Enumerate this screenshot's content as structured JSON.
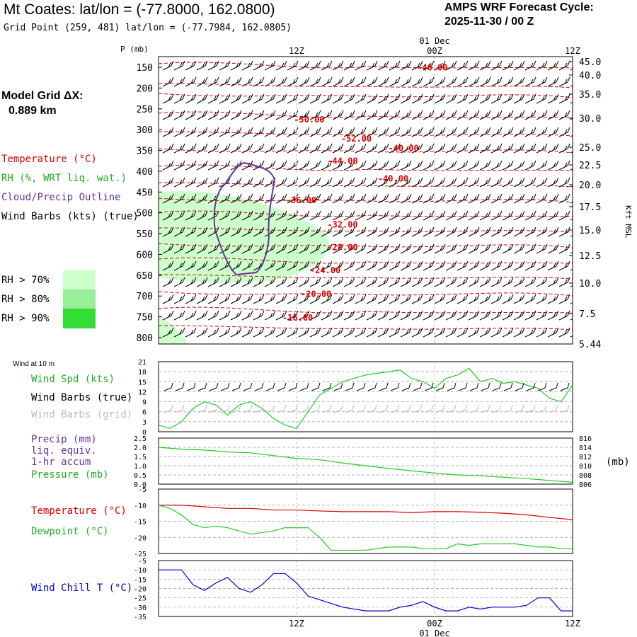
{
  "header": {
    "title": "Mt Coates:  lat/lon = (-77.8000, 162.0800)",
    "grid_point": "Grid Point (259, 481) lat/lon = (-77.7984, 162.0805)",
    "forecast_label": "AMPS WRF Forecast Cycle:",
    "forecast_cycle": "2025-11-30 / 00  Z",
    "model_grid_label": "Model Grid ΔX:",
    "model_grid_value": "0.889 km"
  },
  "legend": {
    "temperature": "Temperature (°C)",
    "rh": "RH (%, WRT liq. wat.)",
    "cloud": "Cloud/Precip Outline",
    "wind_barbs": "Wind Barbs (kts) (true)",
    "rh70": "RH > 70%",
    "rh80": "RH > 80%",
    "rh90": "RH > 90%",
    "colors": {
      "rh70": "#ccffcc",
      "rh80": "#99ee99",
      "rh90": "#33dd33",
      "temperature": "#dd0000",
      "cloud": "#663399",
      "dewpoint": "#22cc22",
      "windchill": "#0000cc"
    }
  },
  "wind10m": {
    "title": "Wind at 10 m",
    "speed_label": "Wind Spd (kts)",
    "barbs_true_label": "Wind Barbs (true)",
    "barbs_grid_label": "Wind Barbs (grid)"
  },
  "precip": {
    "label1": "Precip (mm)",
    "label2": "liq. equiv.",
    "label3": "1-hr accum",
    "pressure_label": "Pressure (mb)",
    "units": "(mb)"
  },
  "temp_panel": {
    "temperature_label": "Temperature (°C)",
    "dewpoint_label": "Dewpoint (°C)"
  },
  "windchill_panel": {
    "label": "Wind Chill T (°C)"
  },
  "chart_data": [
    {
      "type": "heatmap",
      "panel": "cross-section",
      "x_ticks": [
        "12Z",
        "00Z",
        "12Z"
      ],
      "x_tick_hours": [
        12,
        24,
        36
      ],
      "day_label": "01 Dec",
      "xlim_hours": [
        0,
        36
      ],
      "ylabel": "P (mb)",
      "p_ticks": [
        "150",
        "200",
        "250",
        "300",
        "350",
        "400",
        "450",
        "500",
        "550",
        "600",
        "650",
        "700",
        "750",
        "800"
      ],
      "right_axis_label": "Kft MSL",
      "kft_ticks": [
        "45.0",
        "40.0",
        "35.0",
        "30.0",
        "25.0",
        "22.5",
        "20.0",
        "17.5",
        "15.0",
        "12.5",
        "10.0",
        "7.5",
        "5.44"
      ],
      "isotherms": [
        {
          "label": "-46.00",
          "x": 23.8,
          "p": 158
        },
        {
          "label": "-50.00",
          "x": 13.1,
          "p": 283
        },
        {
          "label": "-52.00",
          "x": 17.2,
          "p": 329
        },
        {
          "label": "-40.00",
          "x": 21.3,
          "p": 352
        },
        {
          "label": "-44.00",
          "x": 16.0,
          "p": 382
        },
        {
          "label": "-40.00",
          "x": 20.4,
          "p": 425
        },
        {
          "label": "-36.00",
          "x": 12.4,
          "p": 477
        },
        {
          "label": "-32.00",
          "x": 16.0,
          "p": 535
        },
        {
          "label": "-28.00",
          "x": 16.0,
          "p": 590
        },
        {
          "label": "-24.00",
          "x": 14.5,
          "p": 645
        },
        {
          "label": "-20.00",
          "x": 13.7,
          "p": 702
        },
        {
          "label": "-16.00",
          "x": 12.1,
          "p": 759
        }
      ],
      "grid": true
    },
    {
      "type": "line",
      "panel": "wind10m",
      "ylim": [
        0,
        21
      ],
      "y_ticks": [
        "0",
        "3",
        "6",
        "9",
        "12",
        "15",
        "18",
        "21"
      ],
      "series": [
        {
          "name": "Wind Spd (kts)",
          "color": "#22cc22",
          "x": [
            0,
            1,
            2,
            3,
            4,
            5,
            6,
            7,
            8,
            9,
            10,
            11,
            12,
            13,
            14,
            15,
            16,
            17,
            18,
            19,
            20,
            21,
            22,
            23,
            24,
            25,
            26,
            27,
            28,
            29,
            30,
            31,
            32,
            33,
            34,
            35,
            36
          ],
          "values": [
            2,
            1,
            3,
            7,
            9,
            8,
            5,
            8,
            9,
            7,
            4,
            2,
            1,
            6,
            11,
            13,
            15,
            16,
            17,
            17.5,
            18,
            18.5,
            16,
            15,
            13,
            16,
            17,
            19,
            15,
            16,
            14.5,
            15,
            14,
            13,
            10,
            9,
            14
          ]
        }
      ]
    },
    {
      "type": "line",
      "panel": "precip-pressure",
      "ylim": [
        0,
        2.5
      ],
      "y_ticks": [
        "0.0",
        "0.5",
        "1.0",
        "1.5",
        "2.0",
        "2.5"
      ],
      "right_ylim": [
        806,
        816
      ],
      "right_y_ticks": [
        "806",
        "808",
        "810",
        "812",
        "814",
        "816"
      ],
      "series": [
        {
          "name": "Pressure (mb)",
          "color": "#22cc22",
          "axis": "right",
          "x": [
            0,
            2,
            4,
            6,
            8,
            10,
            12,
            14,
            16,
            18,
            20,
            22,
            24,
            26,
            28,
            30,
            32,
            34,
            36
          ],
          "values": [
            814.0,
            813.6,
            813.4,
            813.0,
            812.8,
            812.2,
            811.6,
            811.3,
            810.6,
            810.0,
            809.4,
            808.9,
            808.4,
            808.0,
            807.8,
            807.5,
            807.2,
            806.8,
            806.4
          ]
        }
      ]
    },
    {
      "type": "line",
      "panel": "temperature",
      "ylim": [
        -25,
        -5
      ],
      "y_ticks": [
        "-5",
        "-10",
        "-15",
        "-20",
        "-25"
      ],
      "series": [
        {
          "name": "Temperature (°C)",
          "color": "#dd0000",
          "x": [
            0,
            2,
            4,
            6,
            8,
            10,
            12,
            14,
            16,
            18,
            20,
            22,
            24,
            26,
            28,
            30,
            32,
            34,
            36
          ],
          "values": [
            -10,
            -10,
            -10.5,
            -11,
            -11,
            -11.5,
            -11.5,
            -11.8,
            -12,
            -12,
            -12,
            -12.3,
            -12,
            -12,
            -12.2,
            -12.5,
            -13,
            -13.8,
            -14.5
          ]
        }
      ]
    },
    {
      "type": "line",
      "panel": "dewpoint",
      "series": [
        {
          "name": "Dewpoint (°C)",
          "color": "#22cc22",
          "x": [
            0,
            1,
            2,
            3,
            4,
            5,
            6,
            7,
            8,
            9,
            10,
            11,
            12,
            13,
            14,
            15,
            16,
            17,
            18,
            19,
            20,
            21,
            22,
            23,
            24,
            25,
            26,
            27,
            28,
            29,
            30,
            31,
            32,
            33,
            34,
            35,
            36
          ],
          "values": [
            -10,
            -11,
            -13,
            -16,
            -17,
            -16.5,
            -17,
            -18,
            -19,
            -18.5,
            -18,
            -17,
            -17,
            -17,
            -20,
            -24,
            -24,
            -24,
            -24,
            -23.5,
            -23,
            -23,
            -23,
            -23.5,
            -23.5,
            -23.5,
            -22,
            -22.5,
            -22,
            -22,
            -22,
            -22,
            -22.5,
            -23,
            -23,
            -23.5,
            -23.5
          ]
        }
      ]
    },
    {
      "type": "line",
      "panel": "windchill",
      "ylim": [
        -35,
        -5
      ],
      "y_ticks": [
        "-5",
        "-10",
        "-15",
        "-20",
        "-25",
        "-30",
        "-35"
      ],
      "series": [
        {
          "name": "Wind Chill T (°C)",
          "color": "#0000cc",
          "x": [
            0,
            1,
            2,
            3,
            4,
            5,
            6,
            7,
            8,
            9,
            10,
            11,
            12,
            13,
            14,
            15,
            16,
            17,
            18,
            19,
            20,
            21,
            22,
            23,
            24,
            25,
            26,
            27,
            28,
            29,
            30,
            31,
            32,
            33,
            34,
            35,
            36
          ],
          "values": [
            -10,
            -10,
            -10,
            -18,
            -21,
            -17,
            -14,
            -20,
            -22,
            -18,
            -12,
            -12,
            -17,
            -24,
            -26,
            -28,
            -30,
            -31,
            -32,
            -32,
            -32,
            -30,
            -29,
            -27,
            -30,
            -32,
            -32,
            -30,
            -31,
            -30,
            -30,
            -30,
            -29,
            -25,
            -25,
            -32,
            -32
          ]
        }
      ]
    }
  ]
}
